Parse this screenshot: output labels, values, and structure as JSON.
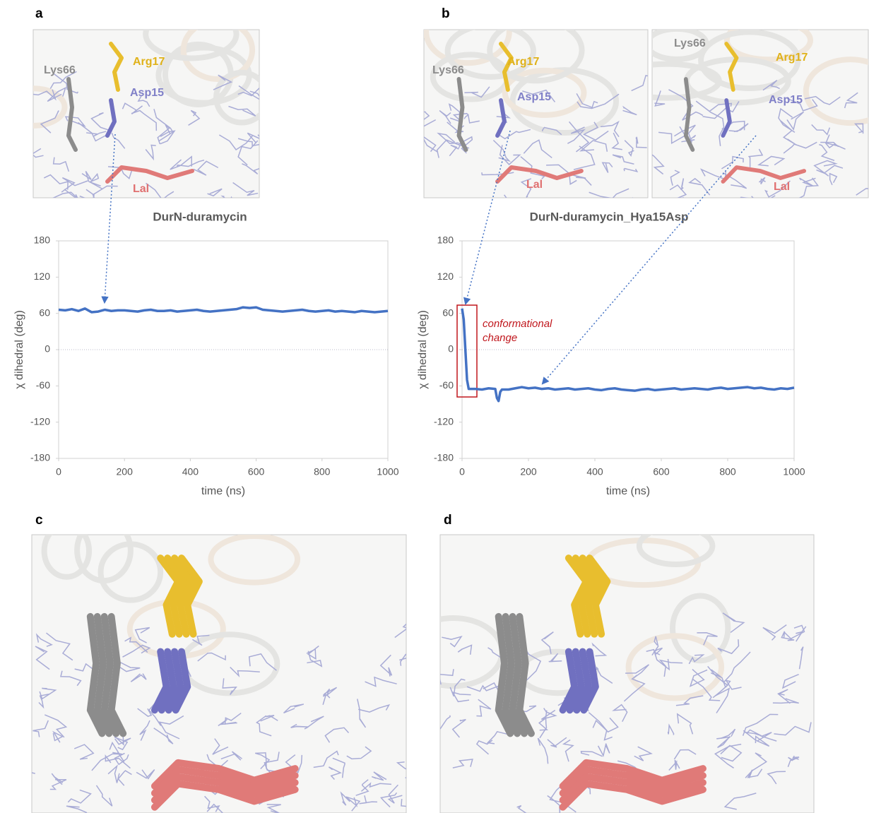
{
  "chart_data": [
    {
      "type": "line",
      "title": "DurN-duramycin",
      "xlabel": "time (ns)",
      "ylabel": "χ dihedral (deg)",
      "x": [
        0,
        20,
        40,
        60,
        80,
        100,
        120,
        140,
        160,
        180,
        200,
        220,
        240,
        260,
        280,
        300,
        320,
        340,
        360,
        380,
        400,
        420,
        440,
        460,
        480,
        500,
        520,
        540,
        560,
        580,
        600,
        620,
        640,
        660,
        680,
        700,
        720,
        740,
        760,
        780,
        800,
        820,
        840,
        860,
        880,
        900,
        920,
        940,
        960,
        980,
        1000
      ],
      "values": [
        66,
        65,
        67,
        64,
        68,
        62,
        63,
        66,
        64,
        65,
        65,
        64,
        63,
        65,
        66,
        64,
        64,
        65,
        63,
        64,
        65,
        66,
        64,
        63,
        64,
        65,
        66,
        67,
        70,
        69,
        70,
        66,
        65,
        64,
        63,
        64,
        65,
        66,
        64,
        63,
        64,
        65,
        63,
        64,
        63,
        62,
        64,
        63,
        62,
        63,
        64
      ],
      "color": "#4472c4",
      "xlim": [
        0,
        1000
      ],
      "xticks": [
        0,
        200,
        400,
        600,
        800,
        1000
      ],
      "ylim": [
        -180,
        180
      ],
      "yticks": [
        -180,
        -120,
        -60,
        0,
        60,
        120,
        180
      ]
    },
    {
      "type": "line",
      "title": "DurN-duramycin_Hya15Asp",
      "xlabel": "time (ns)",
      "ylabel": "χ dihedral (deg)",
      "annotation": "conformational change",
      "x": [
        0,
        5,
        10,
        15,
        20,
        40,
        60,
        80,
        100,
        105,
        110,
        115,
        120,
        140,
        160,
        180,
        200,
        220,
        240,
        260,
        280,
        300,
        320,
        340,
        360,
        380,
        400,
        420,
        440,
        460,
        480,
        500,
        520,
        540,
        560,
        580,
        600,
        620,
        640,
        660,
        680,
        700,
        720,
        740,
        760,
        780,
        800,
        820,
        840,
        860,
        880,
        900,
        920,
        940,
        960,
        980,
        1000
      ],
      "values": [
        68,
        50,
        0,
        -50,
        -65,
        -65,
        -66,
        -64,
        -65,
        -80,
        -85,
        -70,
        -66,
        -66,
        -64,
        -62,
        -64,
        -63,
        -65,
        -64,
        -66,
        -65,
        -64,
        -66,
        -65,
        -64,
        -66,
        -67,
        -65,
        -64,
        -66,
        -67,
        -68,
        -66,
        -65,
        -67,
        -66,
        -65,
        -64,
        -66,
        -65,
        -64,
        -65,
        -66,
        -64,
        -63,
        -65,
        -64,
        -63,
        -62,
        -64,
        -63,
        -65,
        -66,
        -64,
        -65,
        -63
      ],
      "color": "#4472c4",
      "xlim": [
        0,
        1000
      ],
      "xticks": [
        0,
        200,
        400,
        600,
        800,
        1000
      ],
      "ylim": [
        -180,
        180
      ],
      "yticks": [
        -180,
        -120,
        -60,
        0,
        60,
        120,
        180
      ]
    }
  ],
  "panels": [
    {
      "label": "a",
      "images": [
        [
          "Lys66",
          "Arg17",
          "Asp15",
          "Lal"
        ]
      ]
    },
    {
      "label": "b",
      "images": [
        [
          "Lys66",
          "Arg17",
          "Asp15",
          "Lal"
        ],
        [
          "Lys66",
          "Arg17",
          "Asp15",
          "Lal"
        ]
      ]
    },
    {
      "label": "c"
    },
    {
      "label": "d"
    }
  ]
}
